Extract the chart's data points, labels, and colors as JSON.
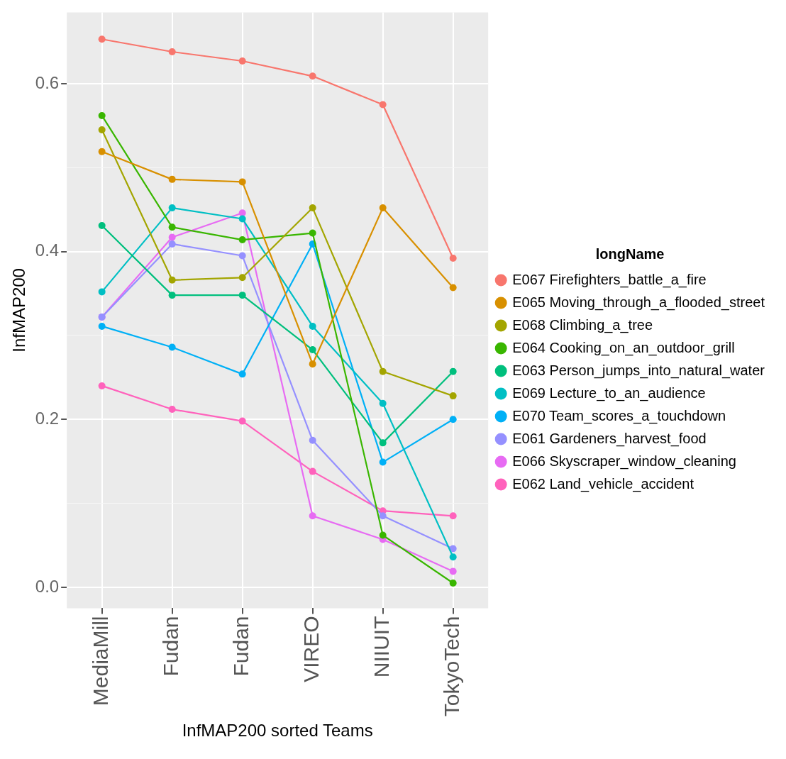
{
  "chart_data": {
    "type": "line",
    "xlabel": "InfMAP200 sorted Teams",
    "ylabel": "InfMAP200",
    "legend_title": "longName",
    "legend": "right",
    "grid": true,
    "marker": "circle",
    "line_style": "solid",
    "categories": [
      "MediaMill",
      "Fudan",
      "Fudan",
      "VIREO",
      "NIIUIT",
      "TokyoTech"
    ],
    "ylim": [
      -0.025,
      0.685
    ],
    "yticks": [
      {
        "value": 0,
        "label": "0.0"
      },
      {
        "value": 0.1,
        "label": null
      },
      {
        "value": 0.2,
        "label": "0.2"
      },
      {
        "value": 0.3,
        "label": null
      },
      {
        "value": 0.4,
        "label": "0.4"
      },
      {
        "value": 0.5,
        "label": null
      },
      {
        "value": 0.6,
        "label": "0.6"
      }
    ],
    "series": [
      {
        "name": "E067 Firefighters_battle_a_fire",
        "color": "#f8766d",
        "values": [
          0.653,
          0.638,
          0.627,
          0.609,
          0.575,
          0.392
        ]
      },
      {
        "name": "E065 Moving_through_a_flooded_street",
        "color": "#d89000",
        "values": [
          0.519,
          0.486,
          0.483,
          0.266,
          0.452,
          0.357
        ]
      },
      {
        "name": "E068 Climbing_a_tree",
        "color": "#a3a500",
        "values": [
          0.545,
          0.366,
          0.369,
          0.452,
          0.257,
          0.228
        ]
      },
      {
        "name": "E064 Cooking_on_an_outdoor_grill",
        "color": "#39b600",
        "values": [
          0.562,
          0.429,
          0.414,
          0.422,
          0.062,
          0.005
        ]
      },
      {
        "name": "E063 Person_jumps_into_natural_water",
        "color": "#00bf7d",
        "values": [
          0.431,
          0.348,
          0.348,
          0.283,
          0.172,
          0.257
        ]
      },
      {
        "name": "E069 Lecture_to_an_audience",
        "color": "#00bfc4",
        "values": [
          0.352,
          0.452,
          0.439,
          0.311,
          0.219,
          0.036
        ]
      },
      {
        "name": "E070 Team_scores_a_touchdown",
        "color": "#00b0f6",
        "values": [
          0.311,
          0.286,
          0.254,
          0.409,
          0.149,
          0.2
        ]
      },
      {
        "name": "E061 Gardeners_harvest_food",
        "color": "#9590ff",
        "values": [
          0.322,
          0.409,
          0.395,
          0.175,
          0.085,
          0.046
        ]
      },
      {
        "name": "E066 Skyscraper_window_cleaning",
        "color": "#e76bf3",
        "values": [
          0.322,
          0.417,
          0.446,
          0.085,
          0.057,
          0.019
        ]
      },
      {
        "name": "E062 Land_vehicle_accident",
        "color": "#ff62bc",
        "values": [
          0.24,
          0.212,
          0.198,
          0.138,
          0.091,
          0.085
        ]
      }
    ]
  }
}
